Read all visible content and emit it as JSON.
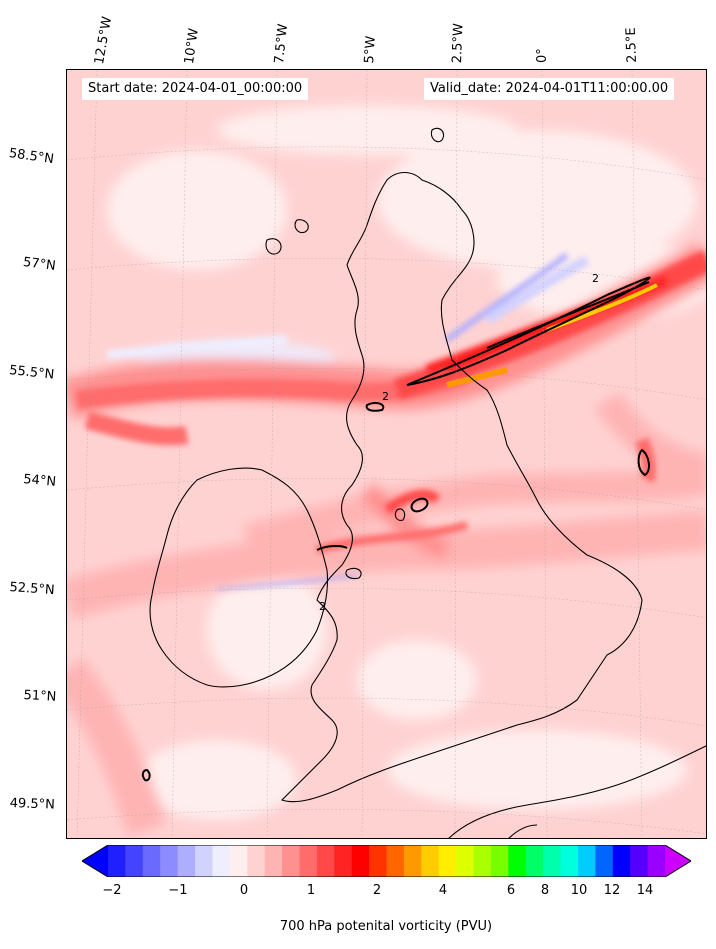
{
  "header": {
    "start_date": "Start date: 2024-04-01_00:00:00",
    "valid_date": "Valid_date: 2024-04-01T11:00:00.00"
  },
  "longitude_labels": [
    "12.5°W",
    "10°W",
    "7.5°W",
    "5°W",
    "2.5°W",
    "0°",
    "2.5°E"
  ],
  "latitude_labels": [
    "58.5°N",
    "57°N",
    "55.5°N",
    "54°N",
    "52.5°N",
    "51°N",
    "49.5°N"
  ],
  "colorbar": {
    "label": "700 hPa potenital vorticity (PVU)",
    "tick_labels": [
      "−2",
      "−1",
      "0",
      "1",
      "2",
      "4",
      "6",
      "8",
      "10",
      "12",
      "14"
    ],
    "colors": [
      "#0000ff",
      "#2020ff",
      "#4444ff",
      "#6a6aff",
      "#8c8cff",
      "#aeaeff",
      "#d2d2ff",
      "#eeeeff",
      "#ffeeee",
      "#ffd2d2",
      "#ffb4b4",
      "#ff9090",
      "#ff6c6c",
      "#ff4848",
      "#ff2424",
      "#ff0000",
      "#ff3300",
      "#ff6600",
      "#ff9900",
      "#ffcc00",
      "#ffee00",
      "#ddff00",
      "#aaff00",
      "#77ff00",
      "#00ff00",
      "#00ff66",
      "#00ffaa",
      "#00ffdd",
      "#00ccff",
      "#0066ff",
      "#0000ff",
      "#5500ff",
      "#9900ff",
      "#cc00ff"
    ]
  },
  "map": {
    "projection": "rotated-pole",
    "background_level_color": "#ffd2d2",
    "contour_line_value": "2",
    "features": [
      "coastlines",
      "lat-lon gridlines",
      "filled potential vorticity contours"
    ]
  }
}
